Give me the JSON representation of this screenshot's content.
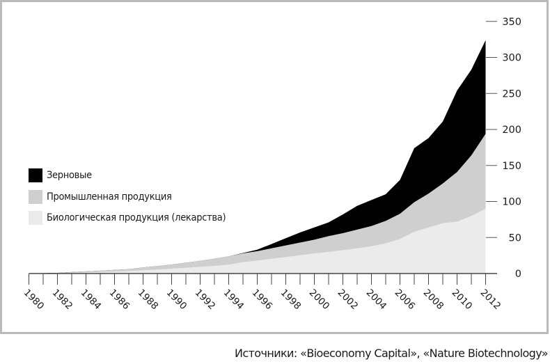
{
  "chart_data": {
    "type": "area",
    "stacked": true,
    "title": "",
    "xlabel": "",
    "ylabel": "",
    "x": [
      1980,
      1981,
      1982,
      1983,
      1984,
      1985,
      1986,
      1987,
      1988,
      1989,
      1990,
      1991,
      1992,
      1993,
      1994,
      1995,
      1996,
      1997,
      1998,
      1999,
      2000,
      2001,
      2002,
      2003,
      2004,
      2005,
      2006,
      2007,
      2008,
      2009,
      2010,
      2011,
      2012
    ],
    "x_tick_labels": [
      "1980",
      "1982",
      "1984",
      "1986",
      "1988",
      "1990",
      "1992",
      "1994",
      "1996",
      "1998",
      "2000",
      "2002",
      "2004",
      "2006",
      "2008",
      "2010",
      "2012"
    ],
    "y_ticks": [
      0,
      50,
      100,
      150,
      200,
      250,
      300,
      350
    ],
    "ylim": [
      0,
      350
    ],
    "grid": false,
    "legend_position": "left-middle",
    "series": [
      {
        "name": "Биологическая продукция (лекарства)",
        "color": "#ebebeb",
        "values": [
          0,
          0.3,
          0.6,
          1,
          1.5,
          2,
          2.7,
          3.5,
          4.5,
          5.5,
          6.8,
          8,
          9.3,
          10.6,
          12.5,
          15.8,
          18,
          20.5,
          23,
          25.5,
          28,
          30,
          32.5,
          35,
          38,
          42,
          48,
          58,
          64,
          70,
          72,
          80,
          90
        ]
      },
      {
        "name": "Промышленная продукция",
        "color": "#cfcfcf",
        "values": [
          0,
          0.2,
          0.4,
          1,
          1.5,
          2,
          2.3,
          2.5,
          3.9,
          4.8,
          5.7,
          7,
          8.4,
          10,
          11.3,
          12.2,
          13,
          14.5,
          16,
          17.5,
          19,
          22,
          23.5,
          26,
          28,
          31,
          35,
          41,
          47,
          55,
          69,
          84,
          104
        ]
      },
      {
        "name": "Зерновые",
        "color": "#000000",
        "values": [
          0,
          0,
          0,
          0,
          0,
          0,
          0,
          0,
          0,
          0,
          0,
          0,
          0,
          0,
          0,
          0.5,
          2,
          6,
          10,
          14,
          17,
          19,
          26,
          33,
          36,
          37,
          47,
          75,
          77,
          86,
          113,
          119,
          130
        ]
      }
    ],
    "legend": [
      "Зерновые",
      "Промышленная продукция",
      "Биологическая продукция (лекарства)"
    ],
    "source": "Источники: «Bioeconomy Capital», «Nature Biotechnology»"
  },
  "legend": {
    "items": [
      {
        "label": "Зерновые",
        "color": "#000000"
      },
      {
        "label": "Промышленная продукция",
        "color": "#cfcfcf"
      },
      {
        "label": "Биологическая продукция (лекарства)",
        "color": "#ebebeb"
      }
    ]
  },
  "source_text": "Источники: «Bioeconomy Capital», «Nature Biotechnology»"
}
